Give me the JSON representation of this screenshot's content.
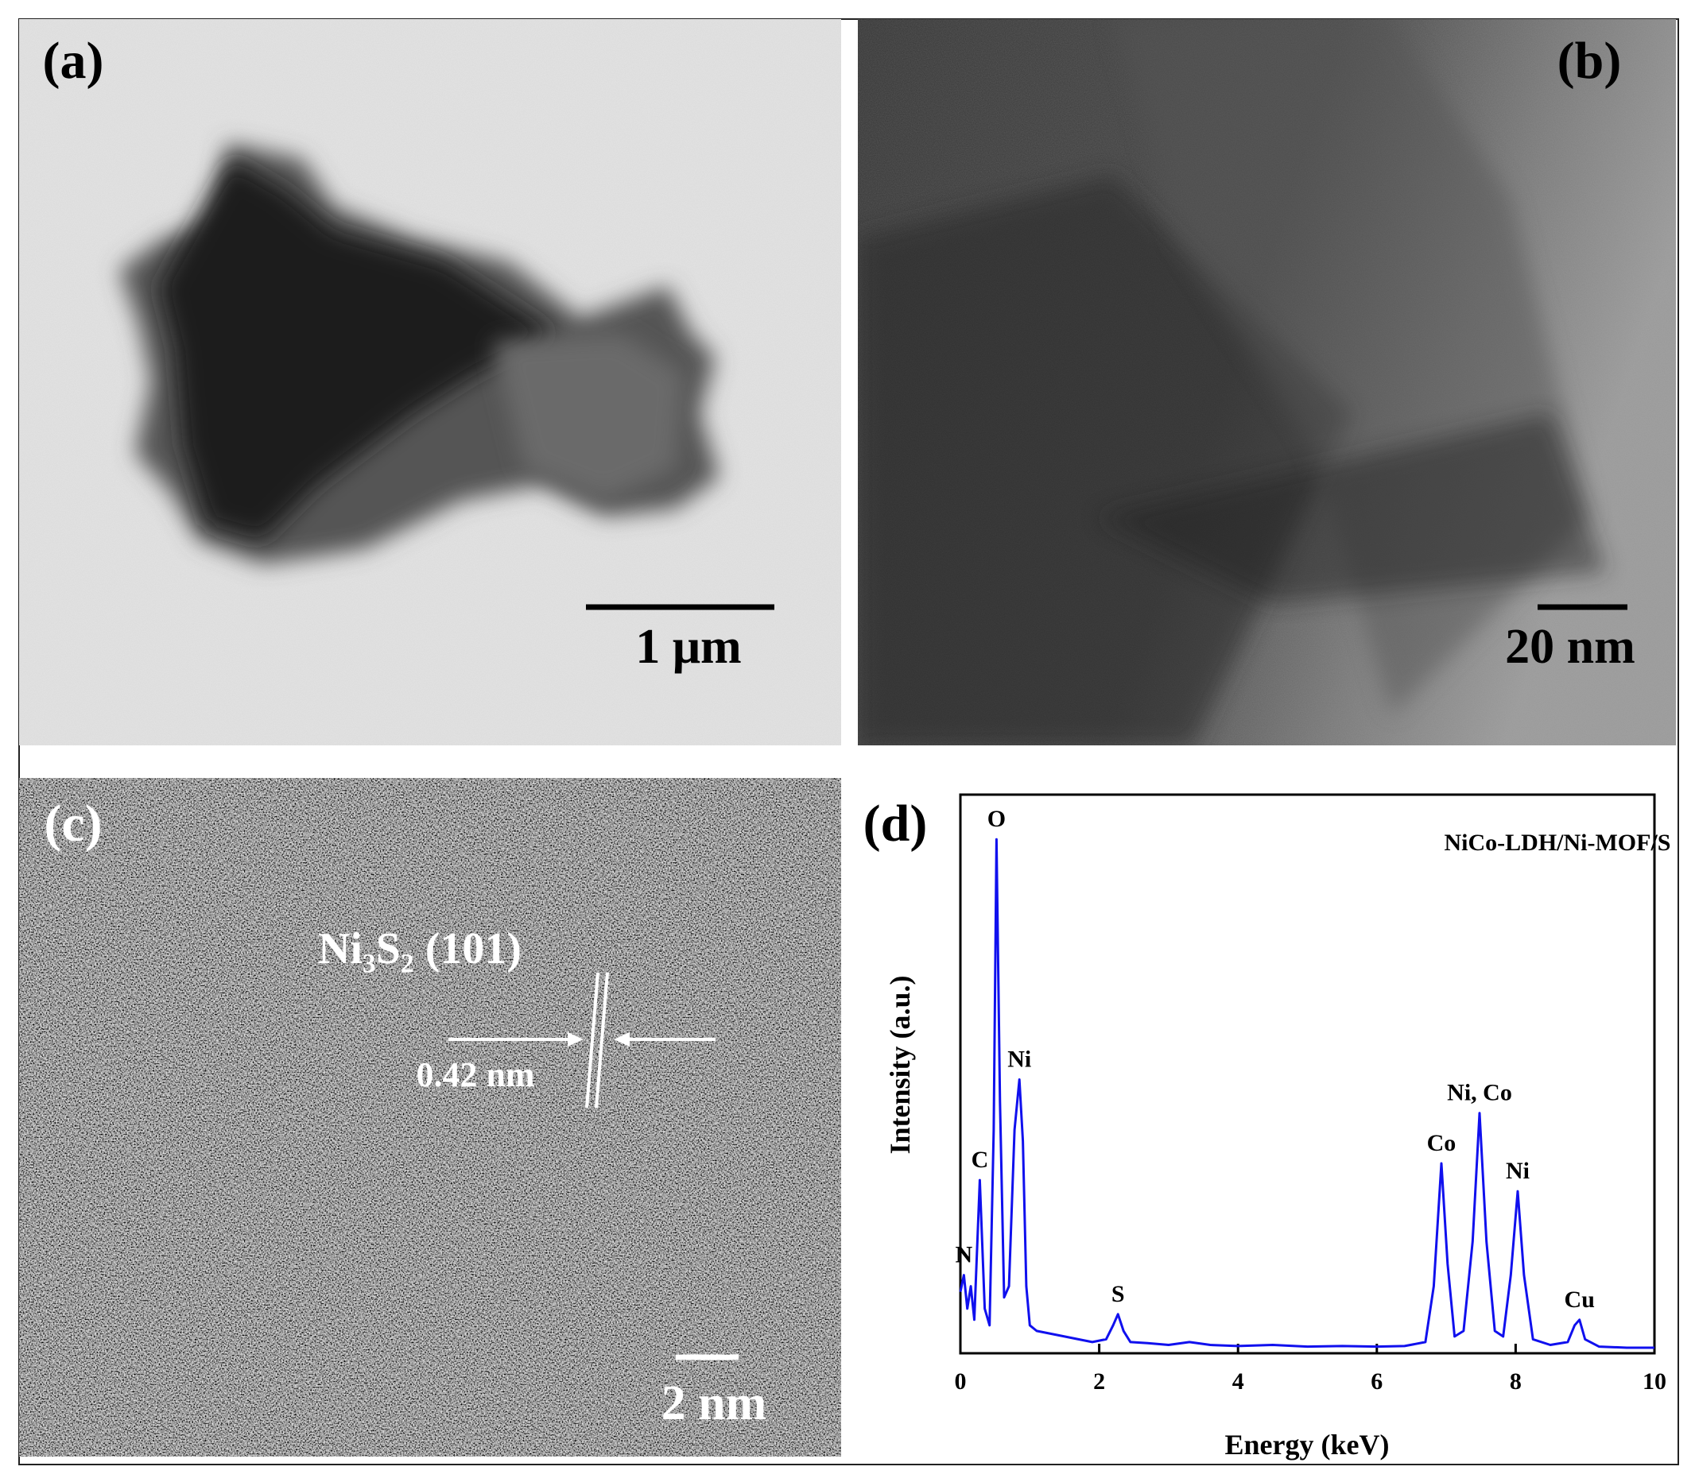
{
  "panels": [
    {
      "label": "(a)",
      "scale_bar": "1 μm"
    },
    {
      "label": "(b)",
      "scale_bar": "20 nm"
    },
    {
      "label": "(c)",
      "scale_bar": "2 nm",
      "annotations": [
        "Ni₃S₂ (101)",
        "0.42 nm"
      ]
    },
    {
      "label": "(d)"
    }
  ],
  "chart_data": {
    "type": "line",
    "x_label": "Energy  (keV)",
    "y_label": "Intensity (a.u.)",
    "x": [
      0,
      0.05,
      0.1,
      0.15,
      0.2,
      0.28,
      0.35,
      0.42,
      0.48,
      0.52,
      0.57,
      0.63,
      0.7,
      0.78,
      0.85,
      0.9,
      0.95,
      1.0,
      1.1,
      1.3,
      1.5,
      1.7,
      1.9,
      2.1,
      2.2,
      2.27,
      2.35,
      2.45,
      2.7,
      3.0,
      3.3,
      3.6,
      4.0,
      4.5,
      5.0,
      5.5,
      6.0,
      6.4,
      6.7,
      6.82,
      6.93,
      7.02,
      7.12,
      7.25,
      7.38,
      7.48,
      7.58,
      7.7,
      7.82,
      7.93,
      8.03,
      8.12,
      8.25,
      8.5,
      8.75,
      8.85,
      8.92,
      9.0,
      9.2,
      9.6,
      10
    ],
    "series": [
      {
        "name": "NiCo-LDH/Ni-MOF/S",
        "color": "#1010ee",
        "values": [
          11,
          14,
          8,
          12,
          6,
          31,
          8,
          5,
          40,
          92,
          45,
          10,
          12,
          40,
          49,
          38,
          12,
          5,
          4,
          3.5,
          3,
          2.5,
          2,
          2.5,
          5,
          7,
          4,
          2,
          1.8,
          1.5,
          2,
          1.5,
          1.3,
          1.5,
          1.2,
          1.3,
          1.2,
          1.3,
          2,
          12,
          34,
          16,
          3,
          4,
          20,
          43,
          20,
          4,
          3,
          14,
          29,
          14,
          2.5,
          1.5,
          2,
          5,
          6,
          2.5,
          1.2,
          1,
          1
        ]
      }
    ],
    "peak_labels": [
      {
        "text": "N",
        "x": 0.05
      },
      {
        "text": "C",
        "x": 0.28
      },
      {
        "text": "O",
        "x": 0.52
      },
      {
        "text": "Ni",
        "x": 0.85
      },
      {
        "text": "S",
        "x": 2.27
      },
      {
        "text": "Co",
        "x": 6.93
      },
      {
        "text": "Ni, Co",
        "x": 7.48
      },
      {
        "text": "Ni",
        "x": 8.03
      },
      {
        "text": "Cu",
        "x": 8.92
      }
    ],
    "xlim": [
      0,
      10
    ],
    "xticks": [
      0,
      2,
      4,
      6,
      8,
      10
    ],
    "ylim": [
      0,
      100
    ]
  }
}
